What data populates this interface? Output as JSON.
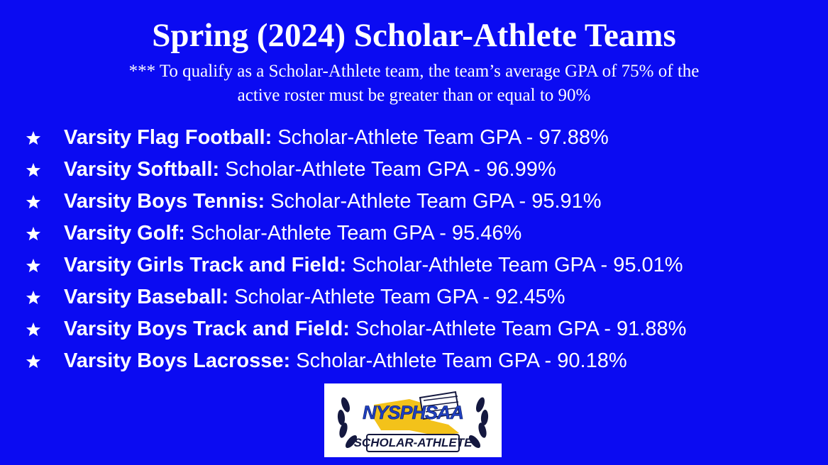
{
  "header": {
    "title": "Spring (2024) Scholar-Athlete Teams",
    "subtitle_lines": [
      "*** To qualify as a Scholar-Athlete team, the team’s average GPA of 75% of the",
      "active roster must be greater than or equal to 90%"
    ]
  },
  "items": [
    {
      "team": "Varsity Flag Football:",
      "detail": "Scholar-Athlete Team GPA - 97.88%"
    },
    {
      "team": "Varsity Softball:",
      "detail": "Scholar-Athlete Team GPA - 96.99%"
    },
    {
      "team": "Varsity Boys Tennis:",
      "detail": "Scholar-Athlete Team GPA - 95.91%"
    },
    {
      "team": "Varsity Golf:",
      "detail": "Scholar-Athlete Team GPA - 95.46%"
    },
    {
      "team": "Varsity Girls Track and Field:",
      "detail": "Scholar-Athlete Team GPA - 95.01%"
    },
    {
      "team": "Varsity Baseball:",
      "detail": "Scholar-Athlete Team GPA - 92.45%"
    },
    {
      "team": "Varsity Boys Track and Field:",
      "detail": "Scholar-Athlete Team GPA - 91.88%"
    },
    {
      "team": "Varsity Boys Lacrosse:",
      "detail": "Scholar-Athlete Team GPA - 90.18%"
    }
  ],
  "logo": {
    "org": "NYSPHSAA",
    "caption": "SCHOLAR-ATHLETE"
  }
}
